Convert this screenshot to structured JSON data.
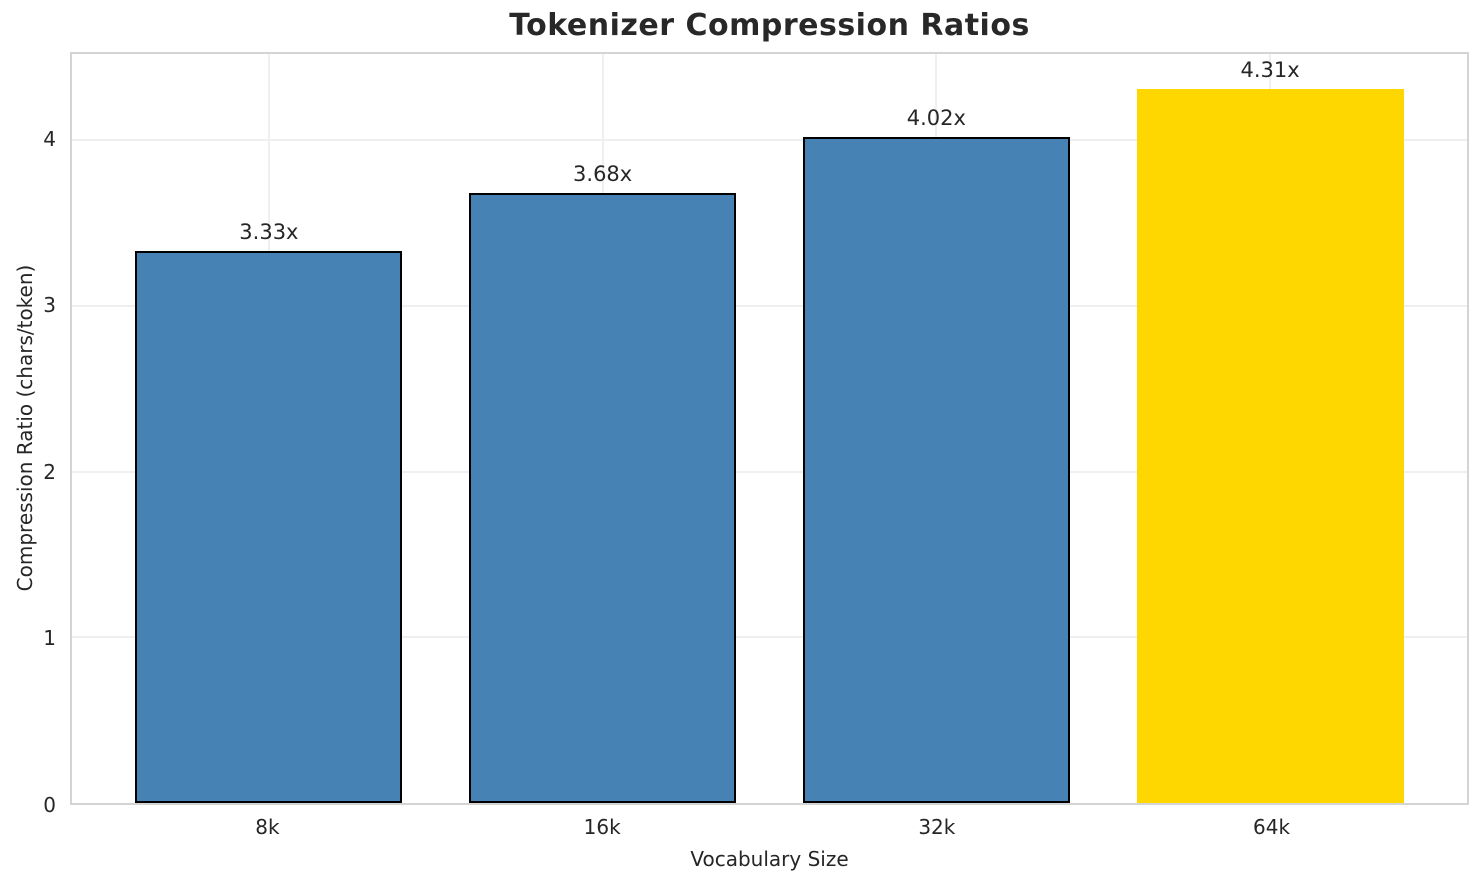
{
  "chart_data": {
    "type": "bar",
    "title": "Tokenizer Compression Ratios",
    "xlabel": "Vocabulary Size",
    "ylabel": "Compression Ratio (chars/token)",
    "categories": [
      "8k",
      "16k",
      "32k",
      "64k"
    ],
    "values": [
      3.33,
      3.68,
      4.02,
      4.31
    ],
    "bars": [
      {
        "category": "8k",
        "value": 3.33,
        "label": "3.33x",
        "color": "#4682b4",
        "edge": "#000000"
      },
      {
        "category": "16k",
        "value": 3.68,
        "label": "3.68x",
        "color": "#4682b4",
        "edge": "#000000"
      },
      {
        "category": "32k",
        "value": 4.02,
        "label": "4.02x",
        "color": "#4682b4",
        "edge": "#000000"
      },
      {
        "category": "64k",
        "value": 4.31,
        "label": "4.31x",
        "color": "#ffd700",
        "edge": "none"
      }
    ],
    "yticks": [
      0,
      1,
      2,
      3,
      4
    ],
    "ylim": [
      0,
      4.52
    ],
    "xlim": [
      -0.59,
      3.59
    ],
    "bar_width": 0.8,
    "grid": true,
    "legend": "none",
    "colors": {
      "default_bar": "#4682b4",
      "highlight_bar": "#ffd700",
      "bar_edge": "#000000",
      "grid": "#efefef",
      "spine": "#d4d4d4",
      "text": "#262626"
    }
  }
}
